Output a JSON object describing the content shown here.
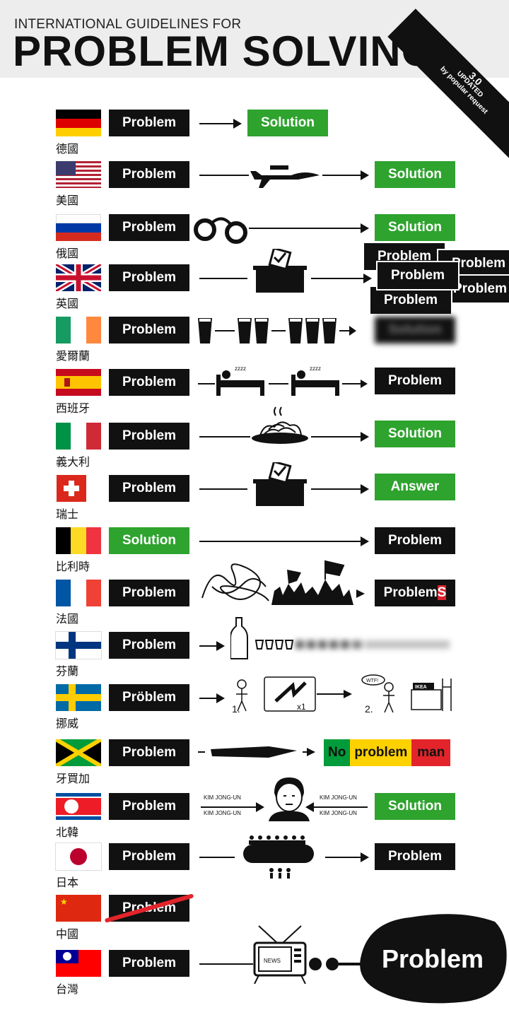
{
  "header": {
    "subtitle": "INTERNATIONAL GUIDELINES FOR",
    "title": "PROBLEM SOLVING",
    "badge_version": "3.0",
    "badge_updated": "UPDATED",
    "badge_note": "by popular request"
  },
  "rows": [
    {
      "country": "德國",
      "start": "Problem",
      "end": "Solution"
    },
    {
      "country": "美國",
      "start": "Problem",
      "end": "Solution"
    },
    {
      "country": "俄國",
      "start": "Problem",
      "end": "Solution"
    },
    {
      "country": "英國",
      "start": "Problem",
      "end": "Problem"
    },
    {
      "country": "愛爾蘭",
      "start": "Problem",
      "end": "Solution"
    },
    {
      "country": "西班牙",
      "start": "Problem",
      "end": "Problem"
    },
    {
      "country": "義大利",
      "start": "Problem",
      "end": "Solution"
    },
    {
      "country": "瑞士",
      "start": "Problem",
      "end": "Answer"
    },
    {
      "country": "比利時",
      "start": "Solution",
      "end": "Problem"
    },
    {
      "country": "法國",
      "start": "Problem",
      "end": "Problem",
      "end_suffix": "S"
    },
    {
      "country": "芬蘭",
      "start": "Problem"
    },
    {
      "country": "挪威",
      "start": "Pröblem",
      "step1": "1.",
      "step2": "2.",
      "mult": "x1",
      "wtf": "WTF!",
      "ikea": "IKEA"
    },
    {
      "country": "牙買加",
      "start": "Problem",
      "end_words": [
        "No",
        "problem",
        "man"
      ]
    },
    {
      "country": "北韓",
      "start": "Problem",
      "end": "Solution",
      "kim_label": "KIM JONG-UN"
    },
    {
      "country": "日本",
      "start": "Problem",
      "end": "Problem"
    },
    {
      "country": "中國",
      "start": "Problem"
    },
    {
      "country": "台灣",
      "start": "Problem",
      "end": "Problem",
      "tv_label": "NEWS"
    }
  ]
}
